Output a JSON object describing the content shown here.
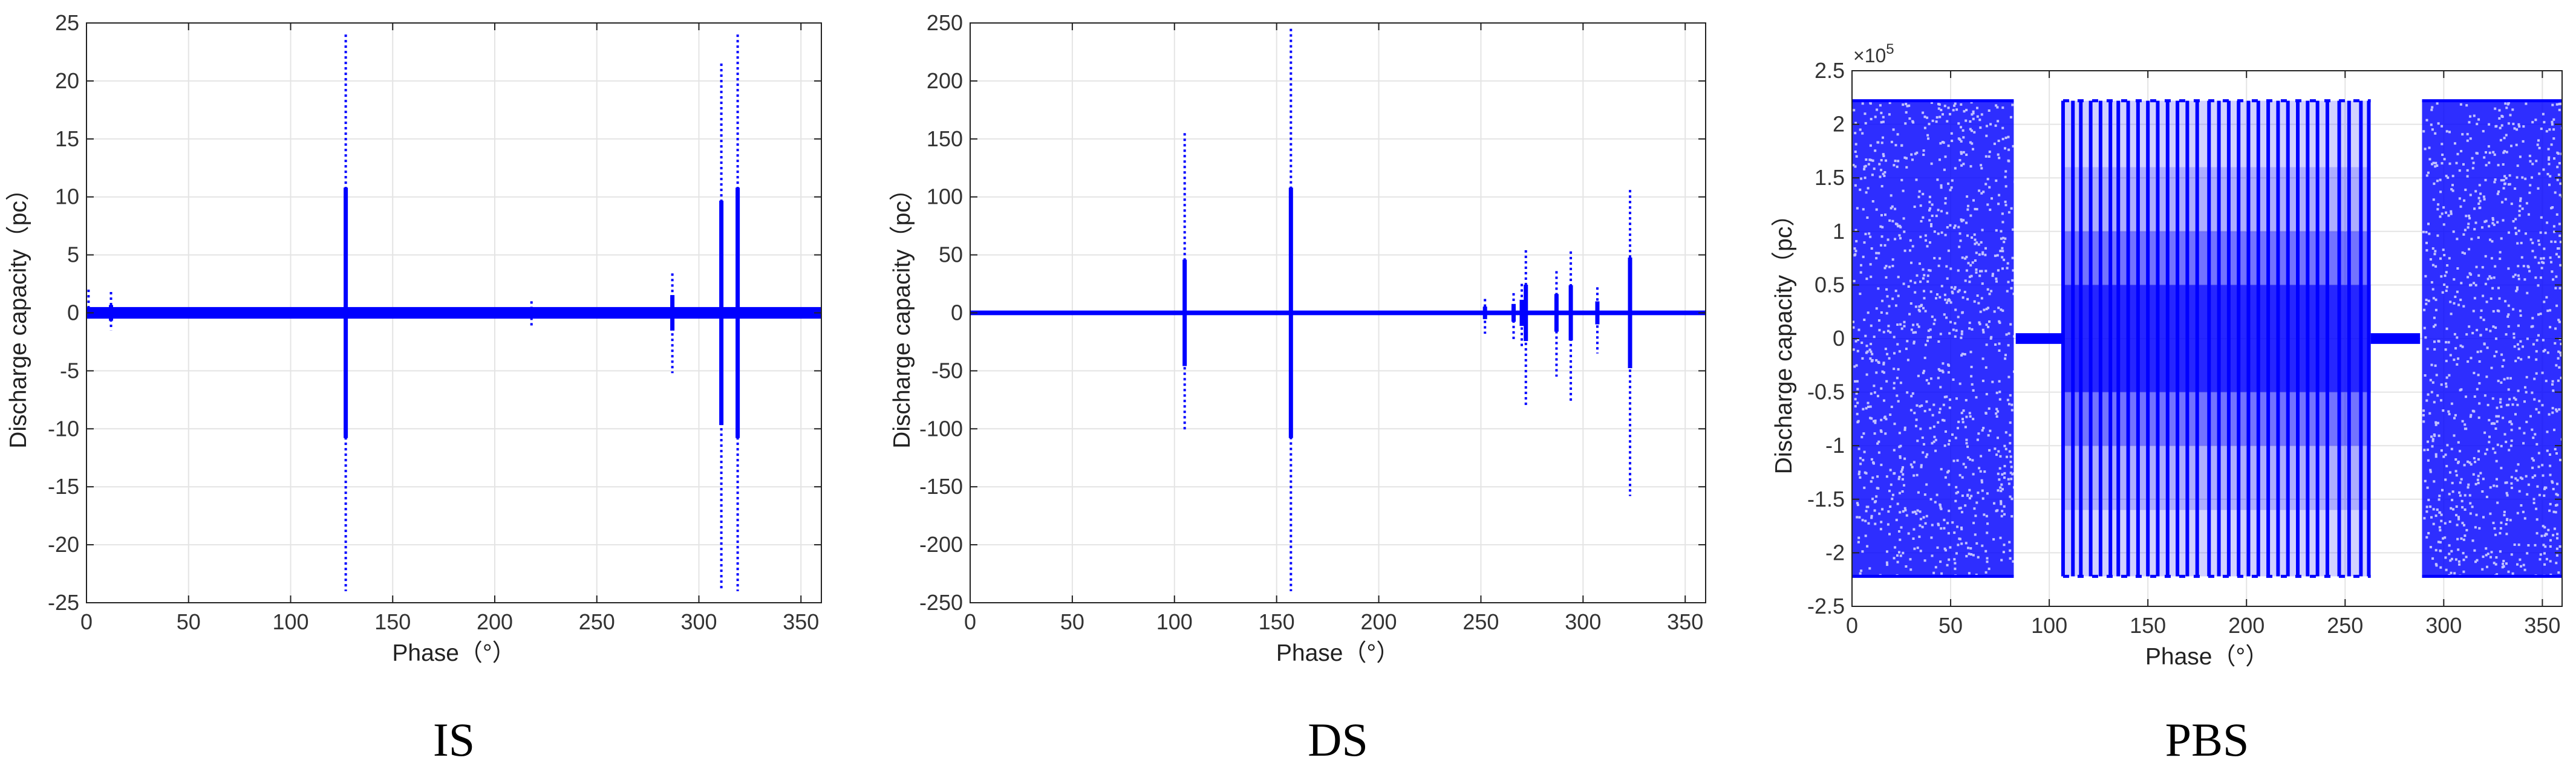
{
  "chart_data": [
    {
      "type": "scatter",
      "panel_label": "IS",
      "xlabel": "Phase（°）",
      "ylabel": "Discharge capacity（pc）",
      "xlim": [
        0,
        360
      ],
      "ylim": [
        -25,
        25
      ],
      "xticks": [
        "0",
        "50",
        "100",
        "150",
        "200",
        "250",
        "300",
        "350"
      ],
      "yticks": [
        "-25",
        "-20",
        "-15",
        "-10",
        "-5",
        "0",
        "5",
        "10",
        "15",
        "20",
        "25"
      ],
      "grid": true,
      "color": "#0000ff",
      "noise_band": 0.5,
      "spikes": [
        {
          "x": 1,
          "min": 0,
          "max": 2
        },
        {
          "x": 12,
          "min": -1.5,
          "max": 1.8
        },
        {
          "x": 127,
          "min": -24,
          "max": 24
        },
        {
          "x": 218,
          "min": -1.2,
          "max": 1
        },
        {
          "x": 287,
          "min": -5.2,
          "max": 3.4
        },
        {
          "x": 311,
          "min": -24,
          "max": 21.5
        },
        {
          "x": 319,
          "min": -24,
          "max": 24
        }
      ]
    },
    {
      "type": "scatter",
      "panel_label": "DS",
      "xlabel": "Phase（°）",
      "ylabel": "Discharge capacity（pc）",
      "xlim": [
        0,
        360
      ],
      "ylim": [
        -250,
        250
      ],
      "xticks": [
        "0",
        "50",
        "100",
        "150",
        "200",
        "250",
        "300",
        "350"
      ],
      "yticks": [
        "-250",
        "-200",
        "-150",
        "-100",
        "-50",
        "0",
        "50",
        "100",
        "150",
        "200",
        "250"
      ],
      "grid": true,
      "color": "#0000ff",
      "noise_band": 2,
      "spikes": [
        {
          "x": 105,
          "min": -102,
          "max": 155
        },
        {
          "x": 157,
          "min": -240,
          "max": 245
        },
        {
          "x": 252,
          "min": -18,
          "max": 12
        },
        {
          "x": 266,
          "min": -25,
          "max": 17
        },
        {
          "x": 270,
          "min": -30,
          "max": 25
        },
        {
          "x": 272,
          "min": -80,
          "max": 54
        },
        {
          "x": 287,
          "min": -55,
          "max": 36
        },
        {
          "x": 294,
          "min": -78,
          "max": 53
        },
        {
          "x": 307,
          "min": -35,
          "max": 22
        },
        {
          "x": 323,
          "min": -158,
          "max": 106
        }
      ]
    },
    {
      "type": "scatter",
      "panel_label": "PBS",
      "xlabel": "Phase（°）",
      "ylabel": "Discharge capacity（pc）",
      "xlim": [
        0,
        360
      ],
      "ylim": [
        -2.5,
        2.5
      ],
      "y_exponent": "×10",
      "y_exponent_power": "5",
      "xticks": [
        "0",
        "50",
        "100",
        "150",
        "200",
        "250",
        "300",
        "350"
      ],
      "yticks": [
        "-2.5",
        "-2",
        "-1.5",
        "-1",
        "-0.5",
        "0",
        "0.5",
        "1",
        "1.5",
        "2",
        "2.5"
      ],
      "grid": true,
      "color": "#0000ff",
      "saturation": 2.22,
      "dense_regions": [
        [
          0,
          82
        ],
        [
          289,
          360
        ]
      ],
      "quiet_regions": [
        [
          83,
          107
        ],
        [
          263,
          288
        ]
      ],
      "spike_lines": [
        107,
        112,
        116,
        121,
        126,
        131,
        135,
        140,
        145,
        150,
        155,
        160,
        165,
        170,
        175,
        181,
        186,
        191,
        196,
        201,
        206,
        211,
        216,
        221,
        226,
        231,
        236,
        241,
        247,
        252,
        258,
        262
      ]
    }
  ]
}
